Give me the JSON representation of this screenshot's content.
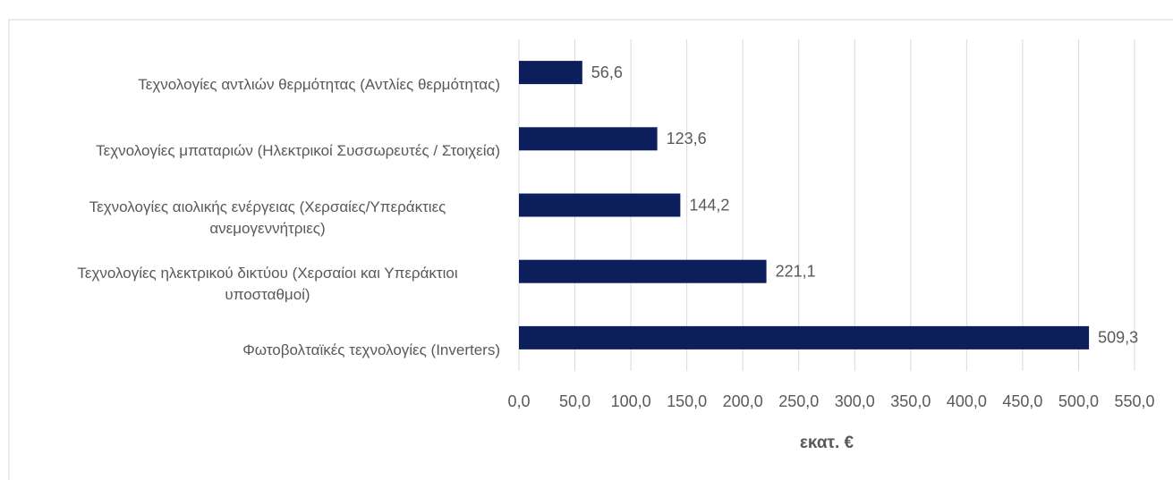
{
  "chart_data": {
    "type": "bar",
    "orientation": "horizontal",
    "categories": [
      "Τεχνολογίες αντλιών θερμότητας (Αντλίες θερμότητας)",
      "Τεχνολογίες μπαταριών (Ηλεκτρικοί Συσσωρευτές / Στοιχεία)",
      "Τεχνολογίες αιολικής ενέργειας (Χερσαίες/Υπεράκτιες ανεμογεννήτριες)",
      "Τεχνολογίες ηλεκτρικού δικτύου (Χερσαίοι και Υπεράκτιοι υποσταθμοί)",
      "Φωτοβολταϊκές τεχνολογίες (Inverters)"
    ],
    "values": [
      56.6,
      123.6,
      144.2,
      221.1,
      509.3
    ],
    "value_labels": [
      "56,6",
      "123,6",
      "144,2",
      "221,1",
      "509,3"
    ],
    "color": "#0c1f5c",
    "xlabel": "εκατ. €",
    "xlim": [
      0,
      550
    ],
    "xticks": [
      {
        "value": 0,
        "label": "0,0"
      },
      {
        "value": 50,
        "label": "50,0"
      },
      {
        "value": 100,
        "label": "100,0"
      },
      {
        "value": 150,
        "label": "150,0"
      },
      {
        "value": 200,
        "label": "200,0"
      },
      {
        "value": 250,
        "label": "250,0"
      },
      {
        "value": 300,
        "label": "300,0"
      },
      {
        "value": 350,
        "label": "350,0"
      },
      {
        "value": 400,
        "label": "400,0"
      },
      {
        "value": 450,
        "label": "450,0"
      },
      {
        "value": 500,
        "label": "500,0"
      },
      {
        "value": 550,
        "label": "550,0"
      }
    ],
    "grid": true
  }
}
